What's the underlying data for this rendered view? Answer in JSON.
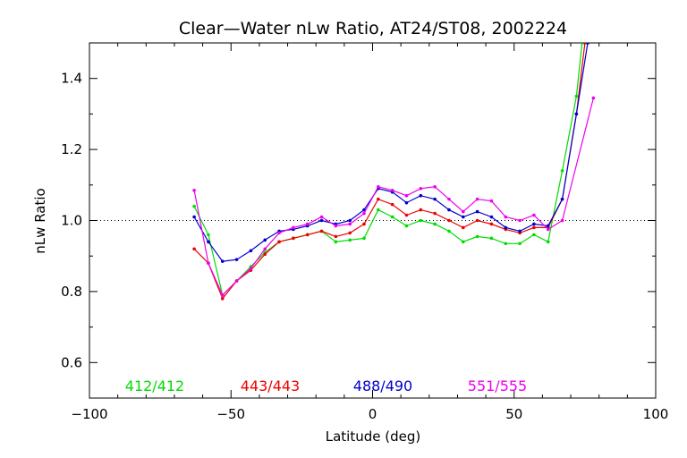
{
  "chart_data": {
    "type": "line",
    "title": "Clear—Water nLw Ratio, AT24/ST08, 2002224",
    "xlabel": "Latitude (deg)",
    "ylabel": "nLw Ratio",
    "xlim": [
      -100,
      100
    ],
    "ylim": [
      0.5,
      1.5
    ],
    "xticks": [
      -100,
      -50,
      0,
      50,
      100
    ],
    "xtick_labels": [
      "−100",
      "−50",
      "0",
      "50",
      "100"
    ],
    "yticks": [
      0.6,
      0.8,
      1.0,
      1.2,
      1.4
    ],
    "ytick_labels": [
      "0.6",
      "0.8",
      "1.0",
      "1.2",
      "1.4"
    ],
    "reference_line": {
      "y": 1.0,
      "style": "dotted"
    },
    "grid": false,
    "legend_placement": "bottom inside plot",
    "series": [
      {
        "name": "412/412",
        "color": "#00dd00",
        "x": [
          -63,
          -58,
          -53,
          -48,
          -43,
          -38,
          -33,
          -28,
          -23,
          -18,
          -13,
          -8,
          -3,
          2,
          7,
          12,
          17,
          22,
          27,
          32,
          37,
          42,
          47,
          52,
          57,
          62,
          67,
          72,
          74
        ],
        "y": [
          1.04,
          0.96,
          0.79,
          0.83,
          0.87,
          0.91,
          0.94,
          0.95,
          0.96,
          0.97,
          0.94,
          0.945,
          0.95,
          1.03,
          1.01,
          0.985,
          1.0,
          0.99,
          0.97,
          0.94,
          0.955,
          0.95,
          0.935,
          0.935,
          0.96,
          0.94,
          1.14,
          1.35,
          1.5
        ]
      },
      {
        "name": "443/443",
        "color": "#ee0000",
        "x": [
          -63,
          -58,
          -53,
          -48,
          -43,
          -38,
          -33,
          -28,
          -23,
          -18,
          -13,
          -8,
          -3,
          2,
          7,
          12,
          17,
          22,
          27,
          32,
          37,
          42,
          47,
          52,
          57,
          62,
          67,
          72,
          75
        ],
        "y": [
          0.92,
          0.88,
          0.78,
          0.83,
          0.86,
          0.905,
          0.94,
          0.95,
          0.96,
          0.97,
          0.955,
          0.965,
          0.99,
          1.06,
          1.045,
          1.015,
          1.03,
          1.02,
          1.0,
          0.98,
          1.0,
          0.99,
          0.975,
          0.965,
          0.98,
          0.98,
          1.06,
          1.3,
          1.5
        ]
      },
      {
        "name": "488/490",
        "color": "#0000cc",
        "x": [
          -63,
          -58,
          -53,
          -48,
          -43,
          -38,
          -33,
          -28,
          -23,
          -18,
          -13,
          -8,
          -3,
          2,
          7,
          12,
          17,
          22,
          27,
          32,
          37,
          42,
          47,
          52,
          57,
          62,
          67,
          72,
          76
        ],
        "y": [
          1.01,
          0.94,
          0.885,
          0.89,
          0.915,
          0.945,
          0.97,
          0.975,
          0.985,
          1.0,
          0.99,
          1.0,
          1.03,
          1.09,
          1.08,
          1.05,
          1.07,
          1.06,
          1.03,
          1.01,
          1.025,
          1.01,
          0.98,
          0.97,
          0.99,
          0.985,
          1.06,
          1.3,
          1.5
        ]
      },
      {
        "name": "551/555",
        "color": "#ee00ee",
        "x": [
          -63,
          -58,
          -53,
          -48,
          -43,
          -38,
          -33,
          -28,
          -23,
          -18,
          -13,
          -8,
          -3,
          2,
          7,
          12,
          17,
          22,
          27,
          32,
          37,
          42,
          47,
          52,
          57,
          62,
          67,
          78
        ],
        "y": [
          1.085,
          0.88,
          0.79,
          0.83,
          0.865,
          0.92,
          0.965,
          0.98,
          0.99,
          1.01,
          0.985,
          0.99,
          1.02,
          1.095,
          1.085,
          1.07,
          1.09,
          1.095,
          1.06,
          1.025,
          1.06,
          1.055,
          1.01,
          1.0,
          1.015,
          0.975,
          1.0,
          1.345
        ]
      }
    ]
  }
}
